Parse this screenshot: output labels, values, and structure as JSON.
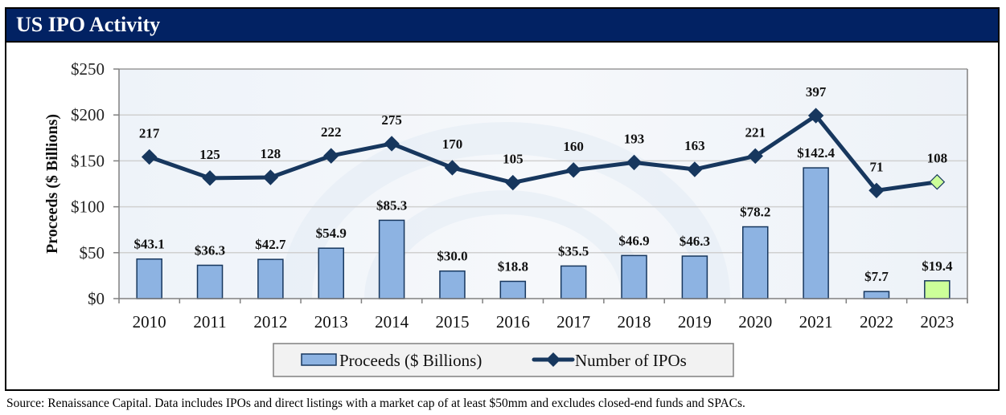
{
  "title": "US IPO Activity",
  "source_note": "Source: Renaissance Capital. Data includes IPOs and direct listings with a market cap of at least $50mm and excludes closed-end funds and SPACs.",
  "colors": {
    "title_bg": "#022263",
    "bar_fill": "#8DB3E2",
    "bar_stroke": "#17375E",
    "highlight_fill": "#CCFF99",
    "line": "#17375E",
    "grid": "#D0D0D0"
  },
  "chart_data": {
    "type": "bar",
    "title": "US IPO Activity",
    "xlabel": "",
    "ylabel": "Proceeds ($ Billions)",
    "ylim": [
      0,
      250
    ],
    "yticks": [
      0,
      50,
      100,
      150,
      200,
      250
    ],
    "ytick_labels": [
      "$0",
      "$50",
      "$100",
      "$150",
      "$200",
      "$250"
    ],
    "grid": true,
    "legend_position": "bottom",
    "categories": [
      "2010",
      "2011",
      "2012",
      "2013",
      "2014",
      "2015",
      "2016",
      "2017",
      "2018",
      "2019",
      "2020",
      "2021",
      "2022",
      "2023"
    ],
    "series": [
      {
        "name": "Proceeds ($ Billions)",
        "type": "bar",
        "axis": "primary",
        "values": [
          43.1,
          36.3,
          42.7,
          54.9,
          85.3,
          30.0,
          18.8,
          35.5,
          46.9,
          46.3,
          78.2,
          142.4,
          7.7,
          19.4
        ],
        "labels": [
          "$43.1",
          "$36.3",
          "$42.7",
          "$54.9",
          "$85.3",
          "$30.0",
          "$18.8",
          "$35.5",
          "$46.9",
          "$46.3",
          "$78.2",
          "$142.4",
          "$7.7",
          "$19.4"
        ],
        "highlight_index": 13
      },
      {
        "name": "Number of IPOs",
        "type": "line",
        "axis": "secondary-hidden",
        "secondary_ylim": [
          -400,
          600
        ],
        "values": [
          217,
          125,
          128,
          222,
          275,
          170,
          105,
          160,
          193,
          163,
          221,
          397,
          71,
          108
        ],
        "labels": [
          "217",
          "125",
          "128",
          "222",
          "275",
          "170",
          "105",
          "160",
          "193",
          "163",
          "221",
          "397",
          "71",
          "108"
        ],
        "highlight_index": 13
      }
    ],
    "legend": [
      "Proceeds ($ Billions)",
      "Number of IPOs"
    ]
  }
}
